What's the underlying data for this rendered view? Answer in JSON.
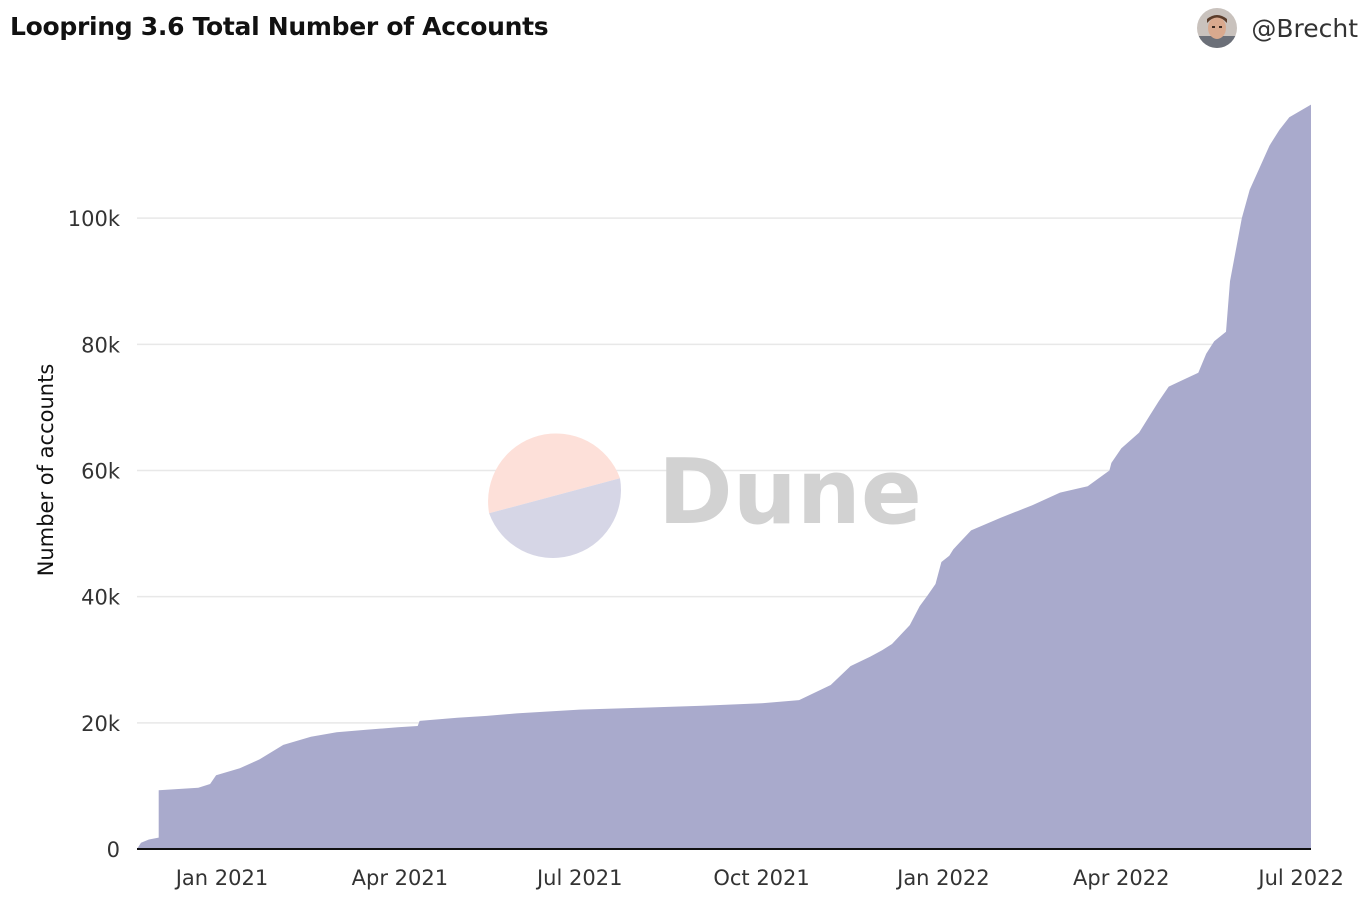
{
  "header": {
    "title": "Loopring 3.6 Total Number of Accounts",
    "author": "@Brecht"
  },
  "watermark": {
    "text": "Dune",
    "icon": "dune-logo-icon",
    "colors": {
      "top": "#fde0d9",
      "bottom": "#d6d6e6"
    }
  },
  "colors": {
    "area_fill": "#a9aacc",
    "grid": "#e8e8e8",
    "baseline": "#111111"
  },
  "chart_data": {
    "type": "area",
    "title": "Loopring 3.6 Total Number of Accounts",
    "xlabel": "",
    "ylabel": "Number of accounts",
    "xlim": [
      "2020-11-19",
      "2022-07-06"
    ],
    "ylim": [
      0,
      120000
    ],
    "grid": true,
    "x_ticks": [
      {
        "date": "2021-01-01",
        "label": "Jan 2021"
      },
      {
        "date": "2021-04-01",
        "label": "Apr 2021"
      },
      {
        "date": "2021-07-01",
        "label": "Jul 2021"
      },
      {
        "date": "2021-10-01",
        "label": "Oct 2021"
      },
      {
        "date": "2022-01-01",
        "label": "Jan 2022"
      },
      {
        "date": "2022-04-01",
        "label": "Apr 2022"
      },
      {
        "date": "2022-07-01",
        "label": "Jul 2022"
      }
    ],
    "y_ticks": [
      {
        "value": 0,
        "label": "0"
      },
      {
        "value": 20000,
        "label": "20k"
      },
      {
        "value": 40000,
        "label": "40k"
      },
      {
        "value": 60000,
        "label": "60k"
      },
      {
        "value": 80000,
        "label": "80k"
      },
      {
        "value": 100000,
        "label": "100k"
      }
    ],
    "series": [
      {
        "x": [
          "2020-11-19",
          "2020-11-21",
          "2020-11-25",
          "2020-11-30",
          "2020-11-30",
          "2020-12-20",
          "2020-12-26",
          "2020-12-29",
          "2021-01-10",
          "2021-01-20",
          "2021-02-01",
          "2021-02-15",
          "2021-02-28",
          "2021-03-15",
          "2021-03-31",
          "2021-04-10",
          "2021-04-11",
          "2021-04-30",
          "2021-05-15",
          "2021-05-30",
          "2021-06-15",
          "2021-07-01",
          "2021-08-01",
          "2021-09-01",
          "2021-10-01",
          "2021-10-20",
          "2021-11-05",
          "2021-11-15",
          "2021-11-25",
          "2021-12-01",
          "2021-12-06",
          "2021-12-15",
          "2021-12-20",
          "2021-12-24",
          "2021-12-28",
          "2021-12-31",
          "2022-01-04",
          "2022-01-06",
          "2022-01-09",
          "2022-01-15",
          "2022-01-30",
          "2022-02-15",
          "2022-03-01",
          "2022-03-15",
          "2022-03-26",
          "2022-03-27",
          "2022-04-01",
          "2022-04-10",
          "2022-04-15",
          "2022-04-20",
          "2022-04-25",
          "2022-05-10",
          "2022-05-14",
          "2022-05-18",
          "2022-05-24",
          "2022-05-26",
          "2022-06-01",
          "2022-06-05",
          "2022-06-10",
          "2022-06-15",
          "2022-06-20",
          "2022-06-25",
          "2022-07-06"
        ],
        "y": [
          0,
          1000,
          1500,
          1800,
          9300,
          9700,
          10300,
          11700,
          12800,
          14200,
          16500,
          17800,
          18500,
          18900,
          19300,
          19500,
          20300,
          20800,
          21100,
          21500,
          21800,
          22100,
          22400,
          22700,
          23100,
          23600,
          26000,
          29000,
          30500,
          31500,
          32500,
          35500,
          38500,
          40200,
          42000,
          45500,
          46500,
          47500,
          48500,
          50500,
          52500,
          54500,
          56500,
          57500,
          60000,
          61200,
          63500,
          66000,
          68500,
          71000,
          73300,
          75500,
          78500,
          80500,
          82000,
          90000,
          100000,
          104500,
          108000,
          111500,
          114000,
          116000,
          118000
        ]
      }
    ]
  }
}
